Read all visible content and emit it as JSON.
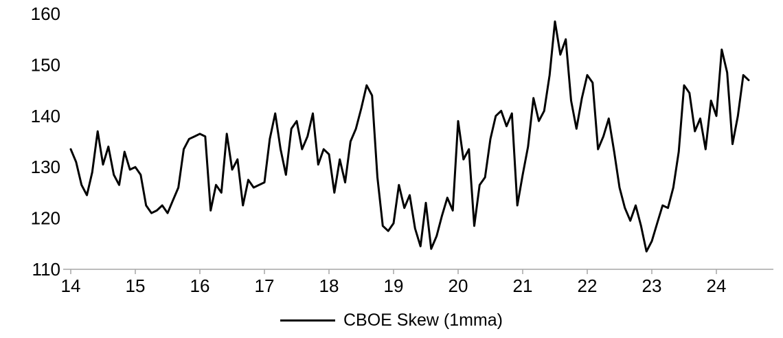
{
  "chart_data": {
    "type": "line",
    "title": "",
    "xlabel": "",
    "ylabel": "",
    "x_tick_labels": [
      "14",
      "15",
      "16",
      "17",
      "18",
      "19",
      "20",
      "21",
      "22",
      "23",
      "24"
    ],
    "x_tick_years": [
      2014,
      2015,
      2016,
      2017,
      2018,
      2019,
      2020,
      2021,
      2022,
      2023,
      2024
    ],
    "y_ticks": [
      110,
      120,
      130,
      140,
      150,
      160
    ],
    "ylim": [
      110,
      160
    ],
    "xlim": [
      2014,
      2024.6
    ],
    "grid": false,
    "legend_position": "bottom",
    "series": [
      {
        "name": "CBOE Skew (1mma)",
        "color": "#000000",
        "x_start": 2014.0,
        "x_step": 0.0833333,
        "values": [
          133.5,
          131,
          126.5,
          124.5,
          129,
          137,
          130.5,
          134,
          128.5,
          126.5,
          133,
          129.5,
          130,
          128.5,
          122.5,
          121,
          121.5,
          122.5,
          121,
          123.5,
          126,
          133.5,
          135.5,
          136,
          136.5,
          136,
          121.5,
          126.5,
          125,
          136.5,
          129.5,
          131.5,
          122.5,
          127.5,
          126,
          126.5,
          127,
          135.5,
          140.5,
          133.5,
          128.5,
          137.5,
          139,
          133.5,
          136,
          140.5,
          130.5,
          133.5,
          132.5,
          125,
          131.5,
          127,
          135,
          137.5,
          141.5,
          146,
          144,
          128,
          118.5,
          117.5,
          119,
          126.5,
          122,
          124.5,
          118,
          114.5,
          123,
          114,
          116.5,
          120.5,
          124,
          121.5,
          139,
          131.5,
          133.5,
          118.5,
          126.5,
          128,
          135.5,
          140,
          141,
          138,
          140.5,
          122.5,
          128.5,
          134,
          143.5,
          139,
          141,
          148,
          158.5,
          152,
          155,
          143,
          137.5,
          143.5,
          148,
          146.5,
          133.5,
          136,
          139.5,
          133,
          126,
          122,
          119.5,
          122.5,
          118.5,
          113.5,
          115.5,
          119,
          122.5,
          122,
          126,
          133,
          146,
          144.5,
          137,
          139.5,
          133.5,
          143,
          140,
          153,
          148.5,
          134.5,
          140,
          148,
          147
        ]
      }
    ]
  },
  "colors": {
    "axis_line": "#a6a6a6",
    "tick_text": "#000000",
    "background": "#ffffff"
  }
}
